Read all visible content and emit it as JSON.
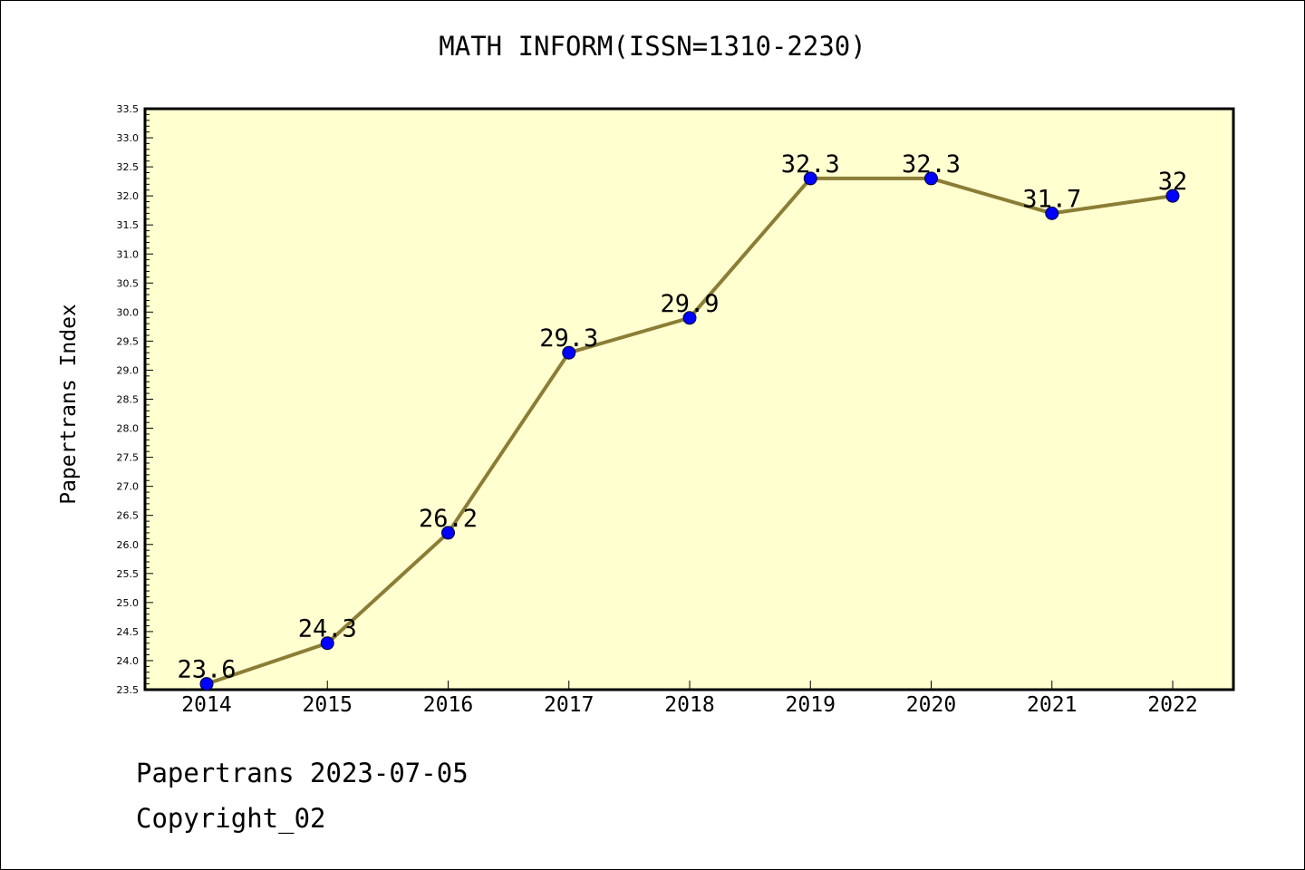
{
  "chart_data": {
    "type": "line",
    "title": "MATH INFORM(ISSN=1310-2230)",
    "xlabel": "",
    "ylabel": "Papertrans Index",
    "categories": [
      "2014",
      "2015",
      "2016",
      "2017",
      "2018",
      "2019",
      "2020",
      "2021",
      "2022"
    ],
    "series": [
      {
        "values": [
          23.6,
          24.3,
          26.2,
          29.3,
          29.9,
          32.3,
          32.3,
          31.7,
          32
        ],
        "data_labels": [
          "23.6",
          "24.3",
          "26.2",
          "29.3",
          "29.9",
          "32.3",
          "32.3",
          "31.7",
          "32"
        ]
      }
    ],
    "ylim": [
      23.5,
      33.5
    ],
    "yticks": [
      "23.5",
      "24.0",
      "24.5",
      "25.0",
      "25.5",
      "26.0",
      "26.5",
      "27.0",
      "27.5",
      "28.0",
      "28.5",
      "29.0",
      "29.5",
      "30.0",
      "30.5",
      "31.0",
      "31.5",
      "32.0",
      "32.5",
      "33.0",
      "33.5"
    ],
    "grid": false,
    "colors": {
      "plot_background": "#ffffd0",
      "line": "#8b7d35",
      "marker": "#0000ff"
    }
  },
  "footer": {
    "line1": "Papertrans 2023-07-05",
    "line2": "Copyright_02"
  }
}
